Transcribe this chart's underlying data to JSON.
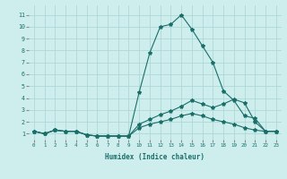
{
  "xlabel": "Humidex (Indice chaleur)",
  "ylabel": "",
  "background_color": "#ceeeed",
  "grid_color": "#aed8d6",
  "line_color": "#1a6e6a",
  "xlim": [
    -0.5,
    23.5
  ],
  "ylim": [
    0.5,
    11.8
  ],
  "yticks": [
    1,
    2,
    3,
    4,
    5,
    6,
    7,
    8,
    9,
    10,
    11
  ],
  "xticks": [
    0,
    1,
    2,
    3,
    4,
    5,
    6,
    7,
    8,
    9,
    10,
    11,
    12,
    13,
    14,
    15,
    16,
    17,
    18,
    19,
    20,
    21,
    22,
    23
  ],
  "series": [
    [
      1.2,
      1.0,
      1.3,
      1.2,
      1.2,
      0.9,
      0.8,
      0.8,
      0.8,
      0.8,
      4.5,
      7.8,
      10.0,
      10.2,
      11.0,
      9.8,
      8.4,
      7.0,
      4.6,
      3.8,
      2.5,
      2.3,
      1.2,
      1.2
    ],
    [
      1.2,
      1.0,
      1.3,
      1.2,
      1.2,
      0.9,
      0.8,
      0.8,
      0.8,
      0.8,
      1.8,
      2.2,
      2.6,
      2.9,
      3.3,
      3.8,
      3.5,
      3.2,
      3.5,
      3.9,
      3.6,
      2.0,
      1.2,
      1.2
    ],
    [
      1.2,
      1.0,
      1.3,
      1.2,
      1.2,
      0.9,
      0.8,
      0.8,
      0.8,
      0.8,
      1.5,
      1.8,
      2.0,
      2.2,
      2.5,
      2.7,
      2.5,
      2.2,
      2.0,
      1.8,
      1.5,
      1.3,
      1.2,
      1.2
    ]
  ]
}
